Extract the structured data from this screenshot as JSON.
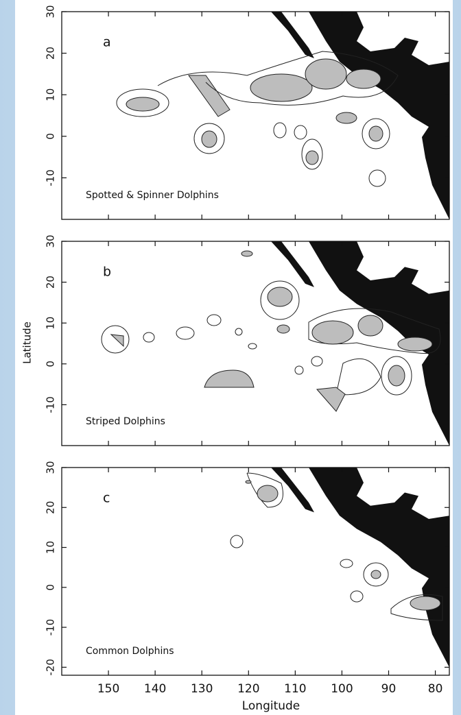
{
  "figure": {
    "x_label": "Longitude",
    "y_label": "Latitude",
    "xlim": [
      160,
      77
    ],
    "xticks": [
      150,
      140,
      130,
      120,
      110,
      100,
      90,
      80
    ],
    "panels": [
      {
        "letter": "a",
        "label": "Spotted & Spinner Dolphins",
        "ylim": [
          -20,
          30
        ],
        "yticks": [
          -10,
          0,
          10,
          20,
          30
        ]
      },
      {
        "letter": "b",
        "label": "Striped Dolphins",
        "ylim": [
          -20,
          30
        ],
        "yticks": [
          -10,
          0,
          10,
          20,
          30
        ]
      },
      {
        "letter": "c",
        "label": "Common Dolphins",
        "ylim": [
          -22,
          30
        ],
        "yticks": [
          -20,
          -10,
          0,
          10,
          20,
          30
        ]
      }
    ]
  }
}
